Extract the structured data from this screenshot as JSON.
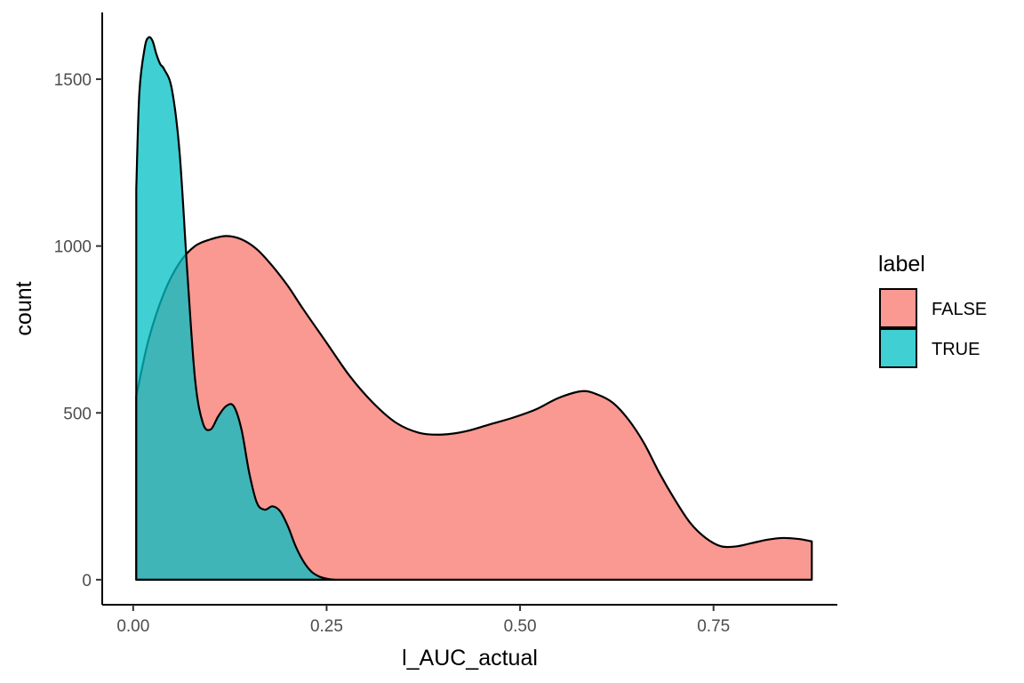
{
  "chart_data": {
    "type": "area",
    "subtype": "density",
    "title": "",
    "xlabel": "l_AUC_actual",
    "ylabel": "count",
    "xlim": [
      -0.04,
      0.91
    ],
    "ylim": [
      -75,
      1700
    ],
    "x_ticks": [
      0.0,
      0.25,
      0.5,
      0.75
    ],
    "x_tick_labels": [
      "0.00",
      "0.25",
      "0.50",
      "0.75"
    ],
    "y_ticks": [
      0,
      500,
      1000,
      1500
    ],
    "y_tick_labels": [
      "0",
      "500",
      "1000",
      "1500"
    ],
    "grid": false,
    "legend": {
      "title": "label",
      "position": "right",
      "entries": [
        {
          "name": "FALSE",
          "color": "#F8766D"
        },
        {
          "name": "TRUE",
          "color": "#00BFC4"
        }
      ]
    },
    "series": [
      {
        "name": "FALSE",
        "color": "#F8766D",
        "x": [
          0.004,
          0.02,
          0.04,
          0.06,
          0.08,
          0.1,
          0.12,
          0.14,
          0.16,
          0.18,
          0.2,
          0.22,
          0.25,
          0.28,
          0.31,
          0.34,
          0.37,
          0.4,
          0.43,
          0.46,
          0.49,
          0.52,
          0.55,
          0.58,
          0.6,
          0.62,
          0.64,
          0.66,
          0.68,
          0.7,
          0.72,
          0.74,
          0.76,
          0.78,
          0.8,
          0.82,
          0.84,
          0.86,
          0.877
        ],
        "y": [
          550,
          720,
          860,
          950,
          1000,
          1020,
          1030,
          1020,
          990,
          940,
          880,
          810,
          710,
          610,
          530,
          470,
          440,
          435,
          445,
          465,
          485,
          510,
          545,
          565,
          555,
          530,
          480,
          410,
          320,
          240,
          170,
          125,
          100,
          100,
          110,
          120,
          125,
          122,
          115
        ]
      },
      {
        "name": "TRUE",
        "color": "#00BFC4",
        "x": [
          0.004,
          0.008,
          0.015,
          0.02,
          0.025,
          0.03,
          0.035,
          0.04,
          0.05,
          0.06,
          0.07,
          0.08,
          0.09,
          0.1,
          0.11,
          0.12,
          0.13,
          0.14,
          0.15,
          0.16,
          0.17,
          0.18,
          0.19,
          0.2,
          0.21,
          0.22,
          0.23,
          0.24,
          0.25,
          0.26
        ],
        "y": [
          1170,
          1460,
          1595,
          1625,
          1615,
          1575,
          1545,
          1530,
          1470,
          1280,
          920,
          600,
          470,
          450,
          490,
          520,
          520,
          450,
          320,
          230,
          210,
          220,
          205,
          160,
          100,
          55,
          25,
          10,
          3,
          0
        ]
      }
    ]
  }
}
